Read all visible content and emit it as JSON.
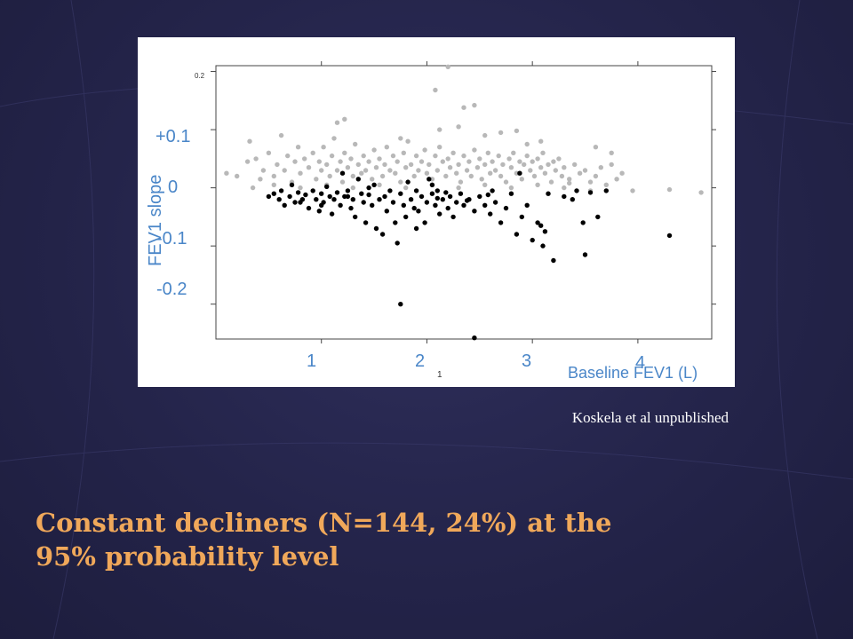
{
  "slide": {
    "citation": "Koskela et al unpublished",
    "title": "Constant decliners (N=144, 24%) at the 95% probability level"
  },
  "colors": {
    "background": "#262650",
    "title": "#f0a85a",
    "axis_label": "#4a86c8",
    "constant_decliners": "#000000",
    "others": "#b8b8b8"
  },
  "chart_data": {
    "type": "scatter",
    "ylabel": "FEV1 slope",
    "xlabel": "Baseline FEV1 (L)",
    "x_ticks": [
      "1",
      "2",
      "3",
      "4"
    ],
    "y_ticks": [
      "+0.1",
      "0",
      "-0.1",
      "-0.2"
    ],
    "y_top_tick": "0.2",
    "x_stray_label": "1",
    "xlim": [
      0.0,
      4.7
    ],
    "ylim": [
      -0.26,
      0.21
    ],
    "series": [
      {
        "key": "others",
        "color": "#b8b8b8",
        "points": [
          [
            0.1,
            0.025
          ],
          [
            0.2,
            0.02
          ],
          [
            0.3,
            0.045
          ],
          [
            0.32,
            0.08
          ],
          [
            0.38,
            0.05
          ],
          [
            0.42,
            0.015
          ],
          [
            0.45,
            0.03
          ],
          [
            0.5,
            0.06
          ],
          [
            0.55,
            0.02
          ],
          [
            0.58,
            0.04
          ],
          [
            0.62,
            0.09
          ],
          [
            0.65,
            0.03
          ],
          [
            0.68,
            0.055
          ],
          [
            0.72,
            0.01
          ],
          [
            0.75,
            0.045
          ],
          [
            0.78,
            0.07
          ],
          [
            0.8,
            0.025
          ],
          [
            0.84,
            0.05
          ],
          [
            0.88,
            0.035
          ],
          [
            0.92,
            0.06
          ],
          [
            0.95,
            0.015
          ],
          [
            0.98,
            0.045
          ],
          [
            1.0,
            0.03
          ],
          [
            1.02,
            0.07
          ],
          [
            1.05,
            0.04
          ],
          [
            1.08,
            0.02
          ],
          [
            1.1,
            0.055
          ],
          [
            1.12,
            0.085
          ],
          [
            1.15,
            0.03
          ],
          [
            1.18,
            0.045
          ],
          [
            1.2,
            0.01
          ],
          [
            1.22,
            0.06
          ],
          [
            1.25,
            0.035
          ],
          [
            1.28,
            0.05
          ],
          [
            1.3,
            0.02
          ],
          [
            1.32,
            0.075
          ],
          [
            1.35,
            0.04
          ],
          [
            1.38,
            0.025
          ],
          [
            1.4,
            0.055
          ],
          [
            1.42,
            0.03
          ],
          [
            1.45,
            0.045
          ],
          [
            1.48,
            0.015
          ],
          [
            1.5,
            0.065
          ],
          [
            1.52,
            0.035
          ],
          [
            1.55,
            0.05
          ],
          [
            1.58,
            0.02
          ],
          [
            1.6,
            0.04
          ],
          [
            1.62,
            0.07
          ],
          [
            1.65,
            0.03
          ],
          [
            1.68,
            0.055
          ],
          [
            1.7,
            0.025
          ],
          [
            1.72,
            0.045
          ],
          [
            1.75,
            0.01
          ],
          [
            1.78,
            0.06
          ],
          [
            1.8,
            0.035
          ],
          [
            1.82,
            0.08
          ],
          [
            1.85,
            0.04
          ],
          [
            1.88,
            0.02
          ],
          [
            1.9,
            0.055
          ],
          [
            1.92,
            0.03
          ],
          [
            1.95,
            0.045
          ],
          [
            1.98,
            0.065
          ],
          [
            2.0,
            0.025
          ],
          [
            2.02,
            0.04
          ],
          [
            2.05,
            0.015
          ],
          [
            2.08,
            0.055
          ],
          [
            2.1,
            0.03
          ],
          [
            2.12,
            0.07
          ],
          [
            2.15,
            0.045
          ],
          [
            2.18,
            0.02
          ],
          [
            2.2,
            0.05
          ],
          [
            2.22,
            0.035
          ],
          [
            2.25,
            0.06
          ],
          [
            2.28,
            0.025
          ],
          [
            2.3,
            0.04
          ],
          [
            2.32,
            0.01
          ],
          [
            2.35,
            0.055
          ],
          [
            2.38,
            0.03
          ],
          [
            2.4,
            0.045
          ],
          [
            2.42,
            0.02
          ],
          [
            2.45,
            0.065
          ],
          [
            2.48,
            0.035
          ],
          [
            2.5,
            0.05
          ],
          [
            2.52,
            0.015
          ],
          [
            2.55,
            0.04
          ],
          [
            2.58,
            0.06
          ],
          [
            2.6,
            0.025
          ],
          [
            2.62,
            0.045
          ],
          [
            2.65,
            0.03
          ],
          [
            2.68,
            0.055
          ],
          [
            2.7,
            0.02
          ],
          [
            2.72,
            0.04
          ],
          [
            2.75,
            0.01
          ],
          [
            2.78,
            0.05
          ],
          [
            2.8,
            0.035
          ],
          [
            2.82,
            0.06
          ],
          [
            2.85,
            0.025
          ],
          [
            2.88,
            0.045
          ],
          [
            2.9,
            0.015
          ],
          [
            2.92,
            0.04
          ],
          [
            2.95,
            0.055
          ],
          [
            2.98,
            0.03
          ],
          [
            3.0,
            0.045
          ],
          [
            3.02,
            0.02
          ],
          [
            3.05,
            0.05
          ],
          [
            3.08,
            0.035
          ],
          [
            3.1,
            0.06
          ],
          [
            3.12,
            0.025
          ],
          [
            3.15,
            0.04
          ],
          [
            3.18,
            0.01
          ],
          [
            3.2,
            0.045
          ],
          [
            3.22,
            0.03
          ],
          [
            3.25,
            0.05
          ],
          [
            3.28,
            0.02
          ],
          [
            3.3,
            0.035
          ],
          [
            3.35,
            0.015
          ],
          [
            3.4,
            0.04
          ],
          [
            3.45,
            0.025
          ],
          [
            3.5,
            0.03
          ],
          [
            3.55,
            0.01
          ],
          [
            3.6,
            0.02
          ],
          [
            3.65,
            0.035
          ],
          [
            3.7,
            0.005
          ],
          [
            3.75,
            0.04
          ],
          [
            3.8,
            0.015
          ],
          [
            3.85,
            0.025
          ],
          [
            0.35,
            0.0
          ],
          [
            0.55,
            0.005
          ],
          [
            0.8,
            0.0
          ],
          [
            1.05,
            0.005
          ],
          [
            1.3,
            0.0
          ],
          [
            1.55,
            0.005
          ],
          [
            1.8,
            0.0
          ],
          [
            2.05,
            0.005
          ],
          [
            2.3,
            0.0
          ],
          [
            2.55,
            0.005
          ],
          [
            2.8,
            0.0
          ],
          [
            3.05,
            0.005
          ],
          [
            3.3,
            0.0
          ],
          [
            3.55,
            -0.005
          ],
          [
            1.15,
            0.112
          ],
          [
            1.22,
            0.118
          ],
          [
            1.75,
            0.085
          ],
          [
            2.08,
            0.168
          ],
          [
            2.2,
            0.208
          ],
          [
            2.35,
            0.138
          ],
          [
            2.45,
            0.142
          ],
          [
            2.12,
            0.1
          ],
          [
            2.3,
            0.105
          ],
          [
            2.55,
            0.09
          ],
          [
            2.7,
            0.095
          ],
          [
            2.85,
            0.098
          ],
          [
            2.95,
            0.075
          ],
          [
            3.08,
            0.08
          ],
          [
            3.6,
            0.07
          ],
          [
            3.75,
            0.06
          ],
          [
            4.3,
            -0.003
          ],
          [
            4.6,
            -0.008
          ],
          [
            3.95,
            -0.005
          ],
          [
            3.35,
            0.008
          ]
        ]
      },
      {
        "key": "constant_decliners",
        "color": "#000000",
        "points": [
          [
            0.5,
            -0.015
          ],
          [
            0.55,
            -0.01
          ],
          [
            0.6,
            -0.02
          ],
          [
            0.62,
            -0.005
          ],
          [
            0.65,
            -0.03
          ],
          [
            0.7,
            -0.015
          ],
          [
            0.72,
            0.005
          ],
          [
            0.75,
            -0.025
          ],
          [
            0.78,
            -0.008
          ],
          [
            0.82,
            -0.02
          ],
          [
            0.85,
            -0.012
          ],
          [
            0.88,
            -0.035
          ],
          [
            0.92,
            -0.005
          ],
          [
            0.95,
            -0.02
          ],
          [
            0.98,
            -0.04
          ],
          [
            1.0,
            -0.01
          ],
          [
            1.02,
            -0.025
          ],
          [
            1.05,
            0.002
          ],
          [
            1.08,
            -0.015
          ],
          [
            1.1,
            -0.045
          ],
          [
            1.12,
            -0.02
          ],
          [
            1.15,
            -0.008
          ],
          [
            1.18,
            -0.03
          ],
          [
            1.2,
            0.025
          ],
          [
            1.22,
            -0.015
          ],
          [
            1.25,
            -0.005
          ],
          [
            1.28,
            -0.035
          ],
          [
            1.3,
            -0.02
          ],
          [
            1.32,
            -0.05
          ],
          [
            1.35,
            0.015
          ],
          [
            1.38,
            -0.01
          ],
          [
            1.4,
            -0.025
          ],
          [
            1.42,
            -0.06
          ],
          [
            1.45,
            -0.012
          ],
          [
            1.48,
            -0.03
          ],
          [
            1.5,
            0.005
          ],
          [
            1.52,
            -0.07
          ],
          [
            1.55,
            -0.02
          ],
          [
            1.58,
            -0.08
          ],
          [
            1.6,
            -0.015
          ],
          [
            1.62,
            -0.04
          ],
          [
            1.65,
            -0.005
          ],
          [
            1.68,
            -0.025
          ],
          [
            1.7,
            -0.06
          ],
          [
            1.72,
            -0.095
          ],
          [
            1.75,
            -0.01
          ],
          [
            1.78,
            -0.03
          ],
          [
            1.8,
            -0.05
          ],
          [
            1.82,
            0.01
          ],
          [
            1.85,
            -0.02
          ],
          [
            1.88,
            -0.035
          ],
          [
            1.9,
            -0.005
          ],
          [
            1.92,
            -0.04
          ],
          [
            1.95,
            -0.015
          ],
          [
            1.98,
            -0.06
          ],
          [
            2.0,
            -0.025
          ],
          [
            2.02,
            0.015
          ],
          [
            2.05,
            -0.01
          ],
          [
            2.08,
            -0.03
          ],
          [
            2.1,
            -0.005
          ],
          [
            2.12,
            -0.045
          ],
          [
            2.15,
            -0.02
          ],
          [
            2.18,
            -0.008
          ],
          [
            2.2,
            -0.035
          ],
          [
            2.22,
            -0.015
          ],
          [
            2.25,
            -0.05
          ],
          [
            2.28,
            -0.025
          ],
          [
            2.32,
            -0.01
          ],
          [
            2.35,
            -0.03
          ],
          [
            2.4,
            -0.02
          ],
          [
            2.45,
            -0.04
          ],
          [
            2.5,
            -0.015
          ],
          [
            2.55,
            -0.03
          ],
          [
            2.6,
            -0.045
          ],
          [
            2.62,
            -0.005
          ],
          [
            2.65,
            -0.025
          ],
          [
            2.7,
            -0.06
          ],
          [
            2.75,
            -0.035
          ],
          [
            2.8,
            -0.01
          ],
          [
            2.85,
            -0.08
          ],
          [
            2.88,
            0.025
          ],
          [
            2.9,
            -0.05
          ],
          [
            2.95,
            -0.03
          ],
          [
            3.0,
            -0.09
          ],
          [
            3.05,
            -0.06
          ],
          [
            3.08,
            -0.065
          ],
          [
            3.1,
            -0.1
          ],
          [
            3.12,
            -0.075
          ],
          [
            3.15,
            -0.01
          ],
          [
            3.2,
            -0.125
          ],
          [
            3.3,
            -0.015
          ],
          [
            3.38,
            -0.02
          ],
          [
            3.42,
            -0.005
          ],
          [
            3.48,
            -0.06
          ],
          [
            3.5,
            -0.115
          ],
          [
            3.55,
            -0.008
          ],
          [
            3.62,
            -0.05
          ],
          [
            3.7,
            -0.005
          ],
          [
            4.3,
            -0.082
          ],
          [
            1.75,
            -0.2
          ],
          [
            2.45,
            -0.258
          ],
          [
            0.8,
            -0.025
          ],
          [
            1.0,
            -0.03
          ],
          [
            1.25,
            -0.015
          ],
          [
            1.45,
            0.0
          ],
          [
            1.9,
            -0.07
          ],
          [
            2.05,
            0.005
          ],
          [
            2.1,
            -0.018
          ],
          [
            2.38,
            -0.022
          ],
          [
            2.58,
            -0.012
          ]
        ]
      }
    ]
  }
}
